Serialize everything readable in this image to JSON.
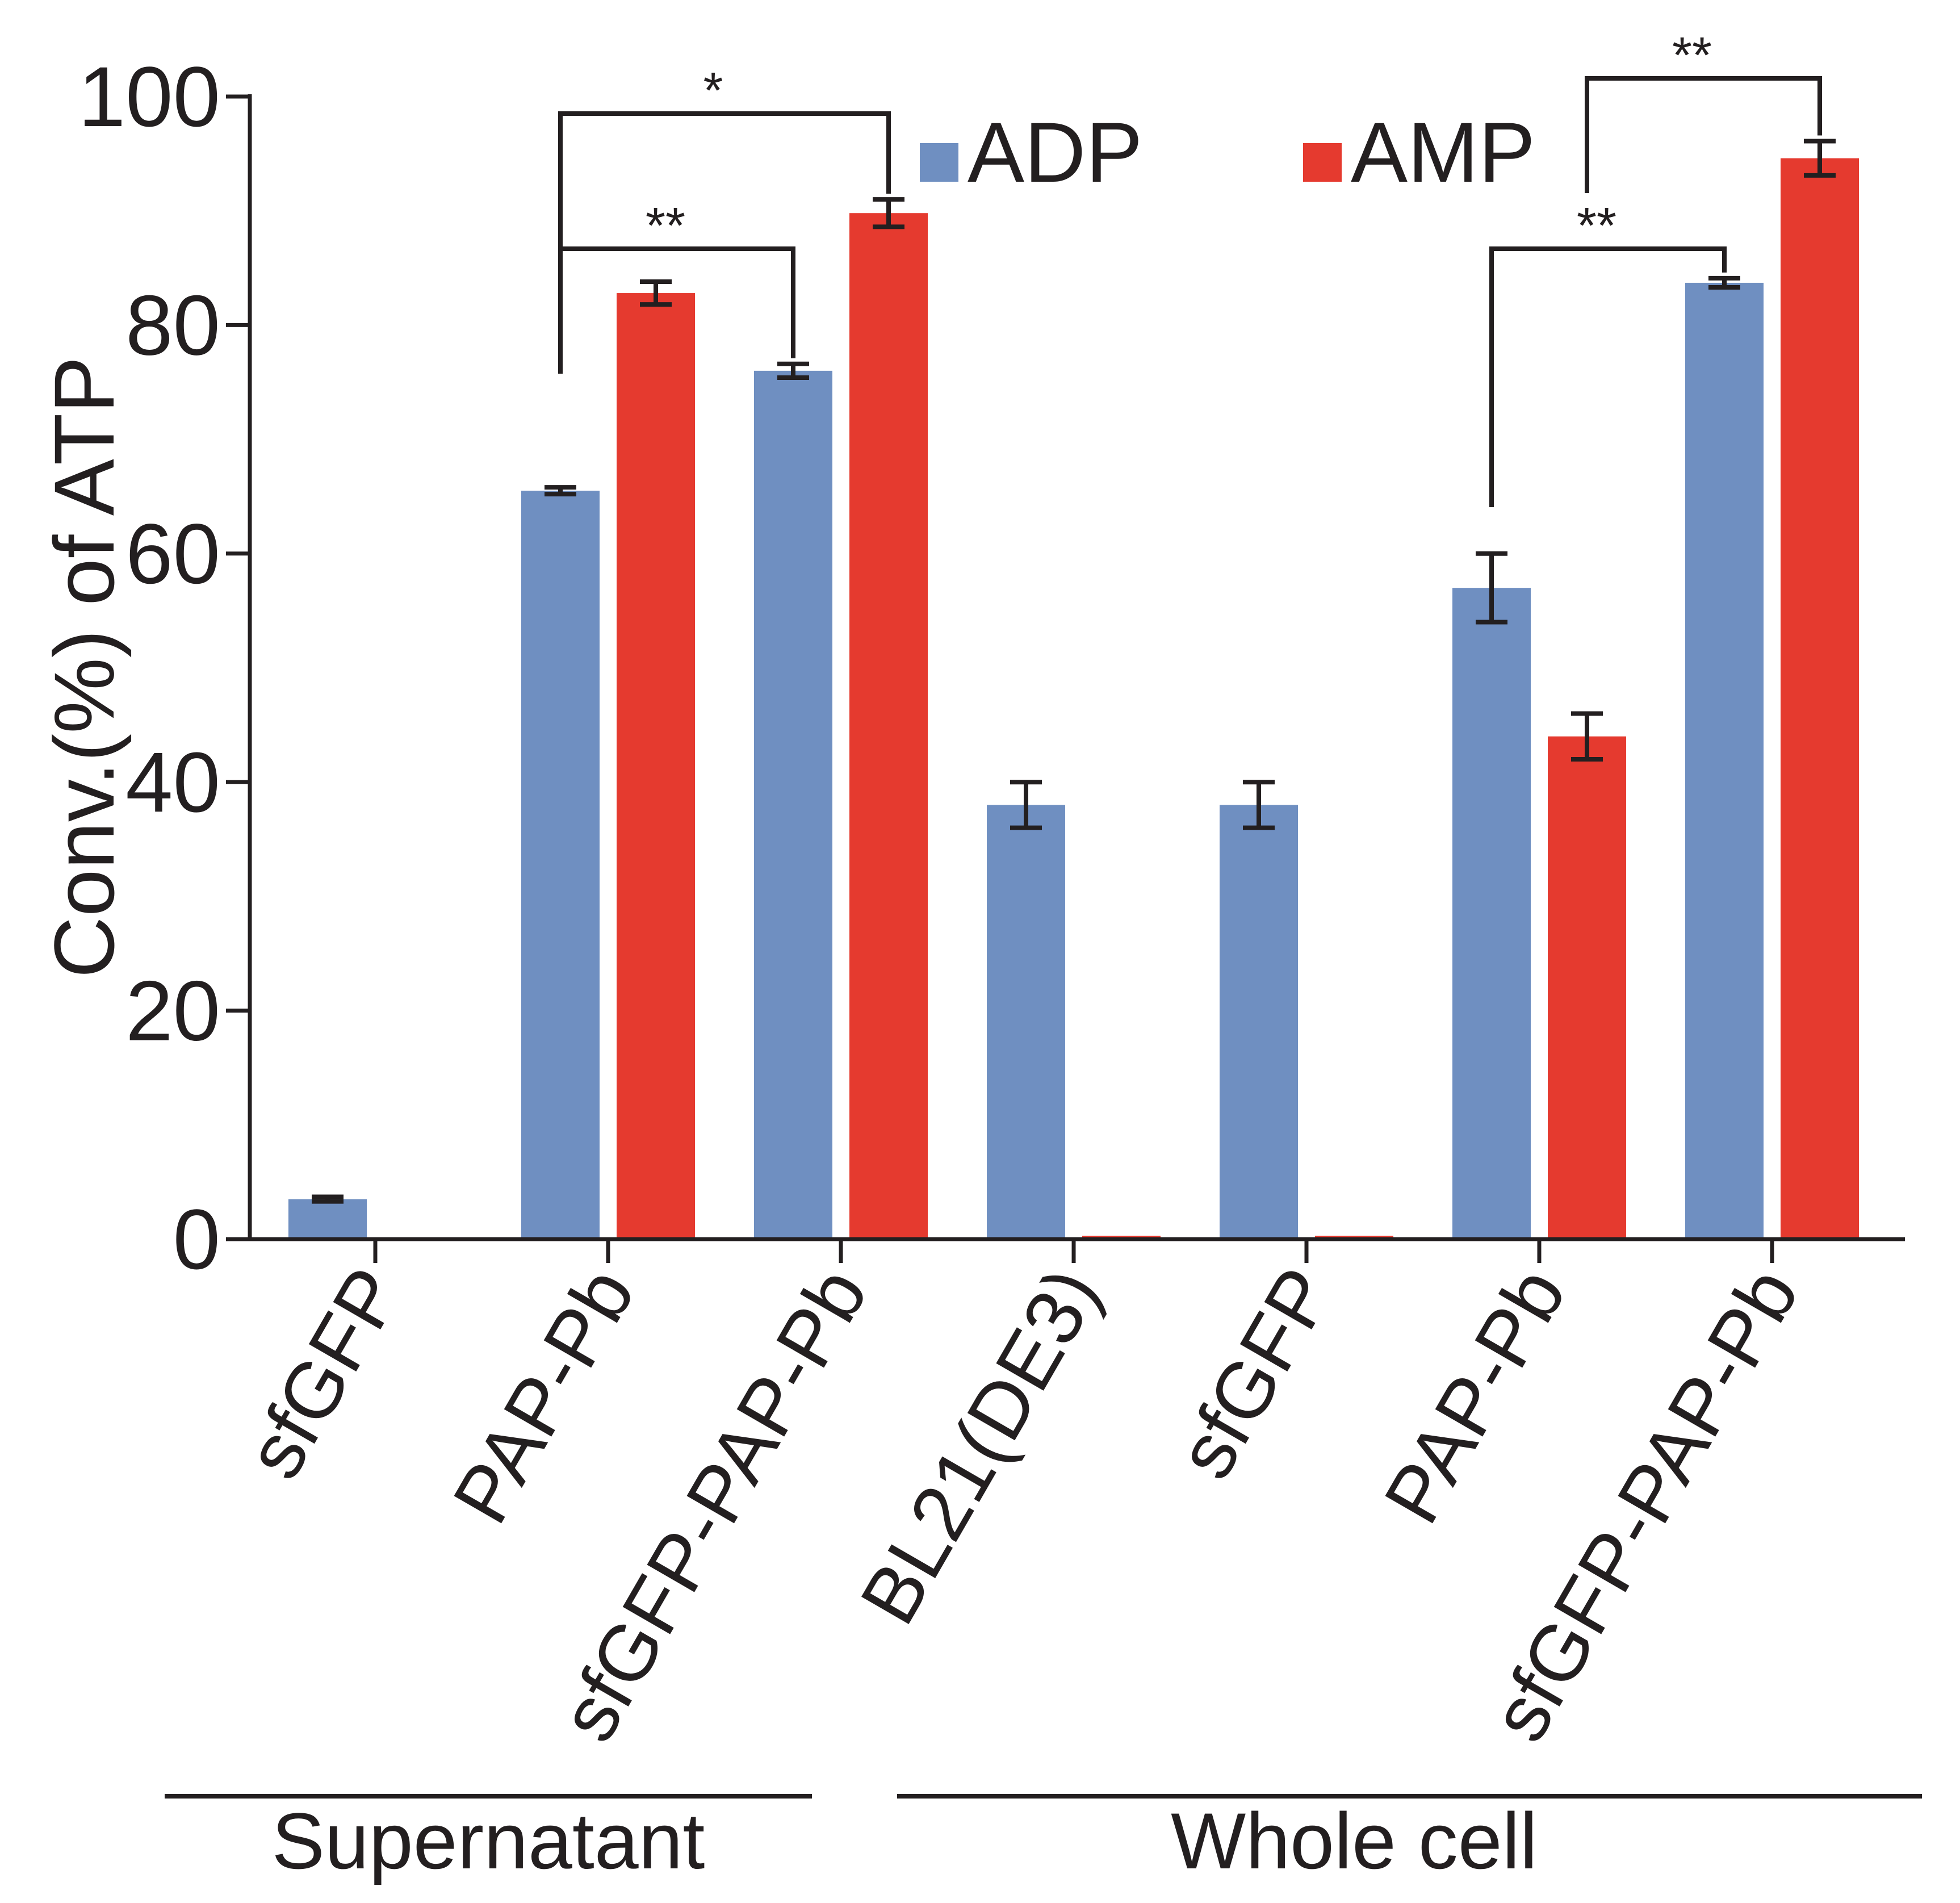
{
  "chart_data": {
    "type": "bar",
    "ylabel": "Conv.(%) of ATP",
    "ylim": [
      0,
      100
    ],
    "yticks": [
      "0",
      "20",
      "40",
      "60",
      "80",
      "100"
    ],
    "categories": [
      "sfGFP",
      "PAP-Pb",
      "sfGFP-PAP-Pb",
      "BL21(DE3)",
      "sfGFP",
      "PAP-Pb",
      "sfGFP-PAP-Pb"
    ],
    "groups": [
      {
        "label": "Supernatant",
        "categories": [
          0,
          1,
          2
        ]
      },
      {
        "label": "Whole cell",
        "categories": [
          3,
          4,
          5,
          6
        ]
      }
    ],
    "series": [
      {
        "name": "ADP",
        "color": "#6f8fc1",
        "values": [
          3.5,
          65.5,
          76,
          38,
          38,
          57,
          83.7
        ],
        "errors": [
          0.2,
          0.3,
          0.6,
          2,
          2,
          3,
          0.4
        ]
      },
      {
        "name": "AMP",
        "color": "#e53a2f",
        "values": [
          null,
          82.8,
          89.8,
          0.3,
          0.3,
          44,
          94.6
        ],
        "errors": [
          null,
          1,
          1.2,
          0,
          0,
          2,
          1.5
        ]
      }
    ],
    "legend": [
      "ADP",
      "AMP"
    ],
    "significance": [
      {
        "from_category": 1,
        "from_series": 0,
        "to_category": 2,
        "to_series": 0,
        "label": "**"
      },
      {
        "from_category": 1,
        "from_series": 0,
        "to_category": 2,
        "to_series": 1,
        "label": "*"
      },
      {
        "from_category": 5,
        "from_series": 0,
        "to_category": 6,
        "to_series": 0,
        "label": "**"
      },
      {
        "from_category": 5,
        "from_series": 1,
        "to_category": 6,
        "to_series": 1,
        "label": "**"
      }
    ]
  }
}
